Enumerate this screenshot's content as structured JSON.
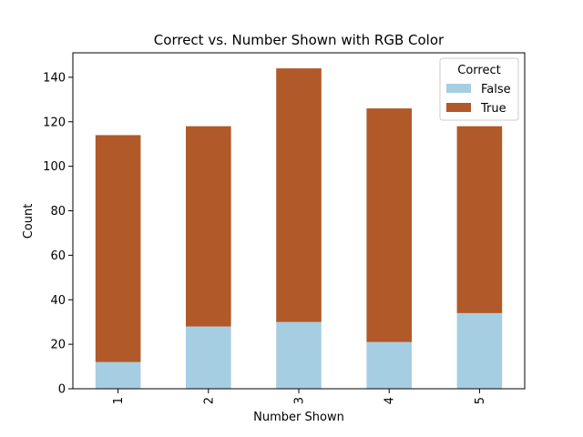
{
  "chart_data": {
    "type": "bar",
    "stacked": true,
    "title": "Correct vs. Number Shown with RGB Color",
    "xlabel": "Number Shown",
    "ylabel": "Count",
    "categories": [
      "1",
      "2",
      "3",
      "4",
      "5"
    ],
    "ylim": [
      0,
      151
    ],
    "yticks": [
      0,
      20,
      40,
      60,
      80,
      100,
      120,
      140
    ],
    "series": [
      {
        "name": "False",
        "color": "#a6cee3",
        "values": [
          12,
          28,
          30,
          21,
          34
        ]
      },
      {
        "name": "True",
        "color": "#b15928",
        "values": [
          102,
          90,
          114,
          105,
          84
        ]
      }
    ],
    "legend": {
      "title": "Correct",
      "placement": "top-right"
    },
    "grid": false
  }
}
